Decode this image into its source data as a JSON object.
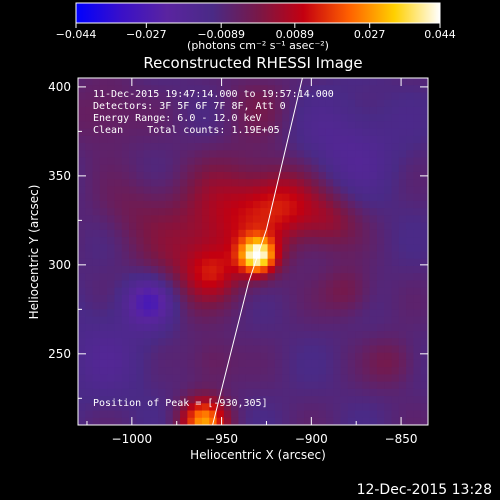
{
  "chart_data": {
    "type": "heatmap",
    "title": "Reconstructed RHESSI Image",
    "xlabel": "Heliocentric X (arcsec)",
    "ylabel": "Heliocentric Y (arcsec)",
    "xlim": [
      -1030,
      -835
    ],
    "ylim": [
      210,
      405
    ],
    "xticks": [
      -1000,
      -950,
      -900,
      -850
    ],
    "xtick_labels": [
      "−1000",
      "−950",
      "−900",
      "−850"
    ],
    "yticks": [
      250,
      300,
      350,
      400
    ],
    "ytick_labels": [
      "250",
      "300",
      "350",
      "400"
    ],
    "colorbar": {
      "range": [
        -0.044,
        0.044
      ],
      "ticks": [
        -0.044,
        -0.027,
        -0.0089,
        0.0089,
        0.027,
        0.044
      ],
      "tick_labels": [
        "−0.044",
        "−0.027",
        "−0.0089",
        "0.0089",
        "0.027",
        "0.044"
      ],
      "unit_label": "(photons cm⁻² s⁻¹ asec⁻²)",
      "colormap": [
        "#0000ff",
        "#3a10c8",
        "#5a24a0",
        "#4a2a86",
        "#781848",
        "#c40010",
        "#ff6000",
        "#ffd000",
        "#ffffff"
      ]
    },
    "annotations": [
      "11-Dec-2015 19:47:14.000 to 19:57:14.000",
      "Detectors: 3F 5F 6F 7F 8F, Att 0",
      "Energy Range: 6.0 - 12.0 keV",
      "Clean    Total counts: 1.19E+05"
    ],
    "peak_label": "Position of Peak = [-930,305]",
    "peak": [
      -930,
      305
    ],
    "limb_line": [
      [
        -955,
        210
      ],
      [
        -935,
        290
      ],
      [
        -925,
        320
      ],
      [
        -905,
        405
      ]
    ],
    "sources": [
      {
        "x": -930,
        "y": 305,
        "value": 0.044,
        "sigma": 7
      },
      {
        "x": -960,
        "y": 212,
        "value": 0.035,
        "sigma": 9
      },
      {
        "x": -945,
        "y": 325,
        "value": 0.018,
        "sigma": 22
      },
      {
        "x": -915,
        "y": 335,
        "value": 0.016,
        "sigma": 14
      },
      {
        "x": -955,
        "y": 295,
        "value": 0.012,
        "sigma": 10
      },
      {
        "x": -975,
        "y": 295,
        "value": 0.008,
        "sigma": 18
      },
      {
        "x": -890,
        "y": 325,
        "value": 0.012,
        "sigma": 12
      },
      {
        "x": -880,
        "y": 285,
        "value": 0.009,
        "sigma": 10
      },
      {
        "x": -955,
        "y": 245,
        "value": 0.007,
        "sigma": 10
      },
      {
        "x": -1015,
        "y": 385,
        "value": 0.007,
        "sigma": 14
      },
      {
        "x": -855,
        "y": 245,
        "value": 0.008,
        "sigma": 10
      },
      {
        "x": -1000,
        "y": 330,
        "value": 0.006,
        "sigma": 14
      },
      {
        "x": -930,
        "y": 390,
        "value": 0.006,
        "sigma": 14
      },
      {
        "x": -990,
        "y": 280,
        "value": -0.02,
        "sigma": 10
      },
      {
        "x": -1015,
        "y": 250,
        "value": -0.006,
        "sigma": 20
      },
      {
        "x": -880,
        "y": 365,
        "value": -0.008,
        "sigma": 20
      }
    ],
    "background_value": -0.009,
    "grid": false
  },
  "footer": {
    "timestamp": "12-Dec-2015 13:28"
  }
}
